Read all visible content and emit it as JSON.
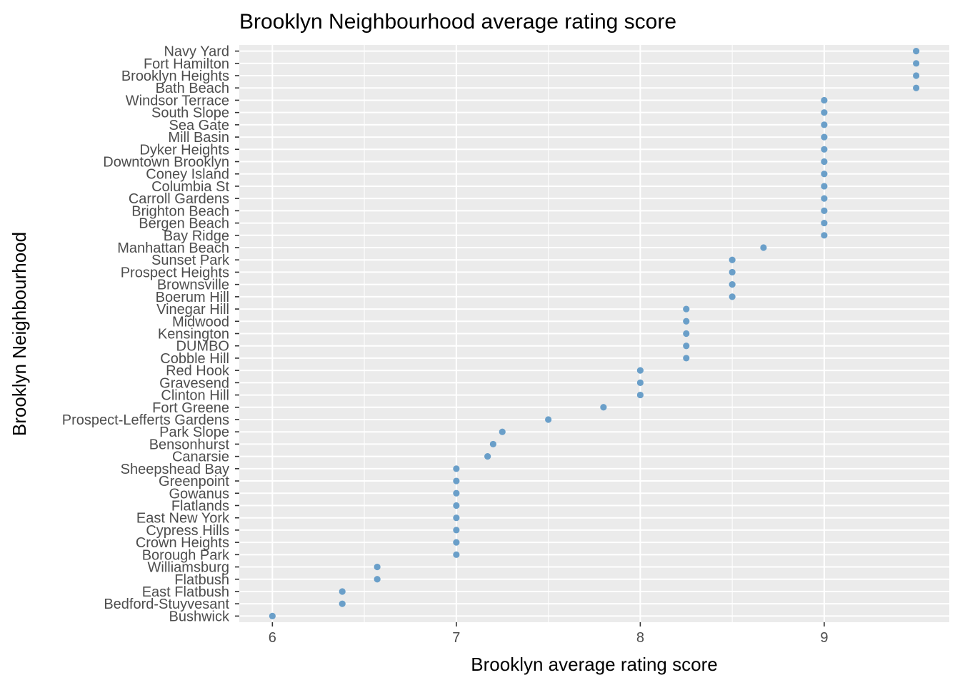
{
  "chart_data": {
    "type": "scatter",
    "title": "Brooklyn Neighbourhood average rating score",
    "xlabel": "Brooklyn average rating score",
    "ylabel": "Brooklyn Neighbourhood",
    "xlim": [
      5.82,
      9.68
    ],
    "x_ticks": [
      6,
      7,
      8,
      9
    ],
    "grid": true,
    "legend": "none",
    "point_color": "#6a9fc9",
    "panel_color": "#ebebeb",
    "points": [
      {
        "name": "Navy Yard",
        "value": 9.5
      },
      {
        "name": "Fort Hamilton",
        "value": 9.5
      },
      {
        "name": "Brooklyn Heights",
        "value": 9.5
      },
      {
        "name": "Bath Beach",
        "value": 9.5
      },
      {
        "name": "Windsor Terrace",
        "value": 9.0
      },
      {
        "name": "South Slope",
        "value": 9.0
      },
      {
        "name": "Sea Gate",
        "value": 9.0
      },
      {
        "name": "Mill Basin",
        "value": 9.0
      },
      {
        "name": "Dyker Heights",
        "value": 9.0
      },
      {
        "name": "Downtown Brooklyn",
        "value": 9.0
      },
      {
        "name": "Coney Island",
        "value": 9.0
      },
      {
        "name": "Columbia St",
        "value": 9.0
      },
      {
        "name": "Carroll Gardens",
        "value": 9.0
      },
      {
        "name": "Brighton Beach",
        "value": 9.0
      },
      {
        "name": "Bergen Beach",
        "value": 9.0
      },
      {
        "name": "Bay Ridge",
        "value": 9.0
      },
      {
        "name": "Manhattan Beach",
        "value": 8.67
      },
      {
        "name": "Sunset Park",
        "value": 8.5
      },
      {
        "name": "Prospect Heights",
        "value": 8.5
      },
      {
        "name": "Brownsville",
        "value": 8.5
      },
      {
        "name": "Boerum Hill",
        "value": 8.5
      },
      {
        "name": "Vinegar Hill",
        "value": 8.25
      },
      {
        "name": "Midwood",
        "value": 8.25
      },
      {
        "name": "Kensington",
        "value": 8.25
      },
      {
        "name": "DUMBO",
        "value": 8.25
      },
      {
        "name": "Cobble Hill",
        "value": 8.25
      },
      {
        "name": "Red Hook",
        "value": 8.0
      },
      {
        "name": "Gravesend",
        "value": 8.0
      },
      {
        "name": "Clinton Hill",
        "value": 8.0
      },
      {
        "name": "Fort Greene",
        "value": 7.8
      },
      {
        "name": "Prospect-Lefferts Gardens",
        "value": 7.5
      },
      {
        "name": "Park Slope",
        "value": 7.25
      },
      {
        "name": "Bensonhurst",
        "value": 7.2
      },
      {
        "name": "Canarsie",
        "value": 7.17
      },
      {
        "name": "Sheepshead Bay",
        "value": 7.0
      },
      {
        "name": "Greenpoint",
        "value": 7.0
      },
      {
        "name": "Gowanus",
        "value": 7.0
      },
      {
        "name": "Flatlands",
        "value": 7.0
      },
      {
        "name": "East New York",
        "value": 7.0
      },
      {
        "name": "Cypress Hills",
        "value": 7.0
      },
      {
        "name": "Crown Heights",
        "value": 7.0
      },
      {
        "name": "Borough Park",
        "value": 7.0
      },
      {
        "name": "Williamsburg",
        "value": 6.57
      },
      {
        "name": "Flatbush",
        "value": 6.57
      },
      {
        "name": "East Flatbush",
        "value": 6.38
      },
      {
        "name": "Bedford-Stuyvesant",
        "value": 6.38
      },
      {
        "name": "Bushwick",
        "value": 6.0
      }
    ]
  }
}
